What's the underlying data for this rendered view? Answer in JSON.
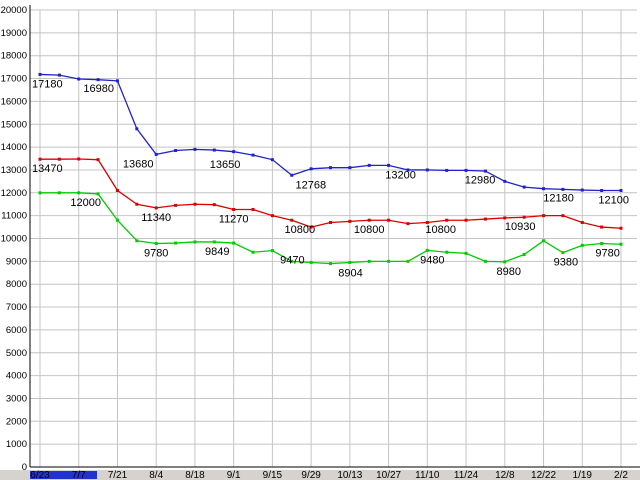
{
  "chart_data": {
    "type": "line",
    "title": "",
    "xlabel": "",
    "ylabel": "",
    "grid": true,
    "legend": "none",
    "x_labels": [
      "6/23",
      "7/7",
      "7/21",
      "8/4",
      "8/18",
      "9/1",
      "9/15",
      "9/29",
      "10/13",
      "10/27",
      "11/10",
      "11/24",
      "12/8",
      "12/22",
      "1/19",
      "2/2"
    ],
    "y_axis": {
      "min": 0,
      "max": 20000,
      "step": 1000,
      "tick_labels": [
        "0",
        "1000",
        "2000",
        "3000",
        "4000",
        "5000",
        "6000",
        "7000",
        "8000",
        "9000",
        "10000",
        "11000",
        "12000",
        "13000",
        "14000",
        "15000",
        "16000",
        "17000",
        "18000",
        "19000",
        "20000"
      ]
    },
    "colors": {
      "grid": "#c4c4c4",
      "axis": "#000000",
      "annotation": "#000000"
    },
    "series": [
      {
        "name": "blue",
        "color": "#2222cc",
        "values": [
          17180,
          17150,
          16980,
          16950,
          16900,
          14800,
          13680,
          13850,
          13900,
          13870,
          13800,
          13650,
          13450,
          12768,
          13050,
          13100,
          13100,
          13200,
          13200,
          13000,
          13000,
          12980,
          12980,
          12950,
          12500,
          12250,
          12180,
          12150,
          12120,
          12100,
          12100
        ]
      },
      {
        "name": "red",
        "color": "#dd0000",
        "values": [
          13470,
          13470,
          13480,
          13450,
          12100,
          11500,
          11340,
          11450,
          11500,
          11480,
          11270,
          11270,
          11000,
          10800,
          10500,
          10700,
          10750,
          10800,
          10800,
          10650,
          10700,
          10800,
          10800,
          10850,
          10900,
          10930,
          11000,
          11000,
          10700,
          10500,
          10450
        ]
      },
      {
        "name": "green",
        "color": "#00cc00",
        "values": [
          12000,
          12000,
          12000,
          11950,
          10800,
          9900,
          9780,
          9800,
          9849,
          9849,
          9800,
          9400,
          9470,
          9000,
          8950,
          8904,
          8950,
          9000,
          9000,
          9000,
          9480,
          9400,
          9350,
          9000,
          8980,
          9300,
          9900,
          9380,
          9700,
          9780,
          9750
        ]
      }
    ],
    "annotations": [
      {
        "series": "blue",
        "point": 0,
        "text": "17180",
        "dx": 0
      },
      {
        "series": "blue",
        "point": 2,
        "text": "16980",
        "dx": 20
      },
      {
        "series": "blue",
        "point": 6,
        "text": "13680",
        "dx": -18
      },
      {
        "series": "blue",
        "point": 11,
        "text": "13650",
        "dx": -28
      },
      {
        "series": "blue",
        "point": 13,
        "text": "12768",
        "dx": 19
      },
      {
        "series": "blue",
        "point": 18,
        "text": "13200",
        "dx": 12
      },
      {
        "series": "blue",
        "point": 22,
        "text": "12980",
        "dx": 14
      },
      {
        "series": "blue",
        "point": 26,
        "text": "12180",
        "dx": 15
      },
      {
        "series": "blue",
        "point": 30,
        "text": "12100",
        "dx": 0
      },
      {
        "series": "red",
        "point": 0,
        "text": "13470",
        "dx": 0
      },
      {
        "series": "red",
        "point": 6,
        "text": "11340",
        "dx": 0
      },
      {
        "series": "red",
        "point": 10,
        "text": "11270",
        "dx": 0
      },
      {
        "series": "red",
        "point": 13,
        "text": "10800",
        "dx": 8
      },
      {
        "series": "red",
        "point": 17,
        "text": "10800",
        "dx": 0
      },
      {
        "series": "red",
        "point": 21,
        "text": "10800",
        "dx": -6
      },
      {
        "series": "red",
        "point": 25,
        "text": "10930",
        "dx": -4
      },
      {
        "series": "green",
        "point": 2,
        "text": "12000",
        "dx": 7
      },
      {
        "series": "green",
        "point": 6,
        "text": "9780",
        "dx": 0
      },
      {
        "series": "green",
        "point": 9,
        "text": "9849",
        "dx": 3
      },
      {
        "series": "green",
        "point": 12,
        "text": "9470",
        "dx": 20
      },
      {
        "series": "green",
        "point": 15,
        "text": "8904",
        "dx": 20
      },
      {
        "series": "green",
        "point": 20,
        "text": "9480",
        "dx": 5
      },
      {
        "series": "green",
        "point": 24,
        "text": "8980",
        "dx": 4
      },
      {
        "series": "green",
        "point": 27,
        "text": "9380",
        "dx": 3
      },
      {
        "series": "green",
        "point": 29,
        "text": "9780",
        "dx": 6
      }
    ]
  },
  "footer": {
    "strip_color": "#d6d3ce",
    "bar_color": "#2233cc"
  }
}
